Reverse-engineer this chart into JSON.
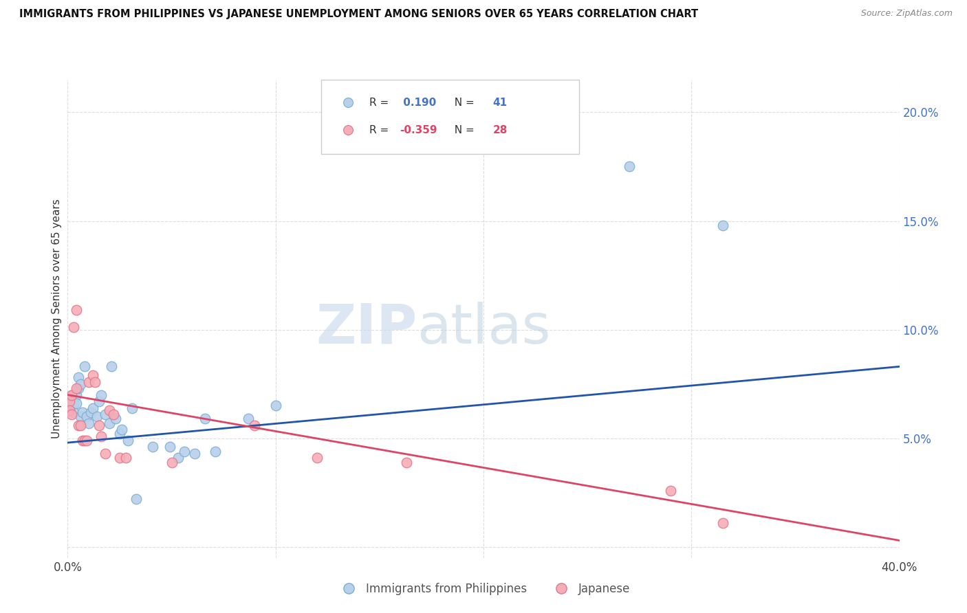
{
  "title": "IMMIGRANTS FROM PHILIPPINES VS JAPANESE UNEMPLOYMENT AMONG SENIORS OVER 65 YEARS CORRELATION CHART",
  "source": "Source: ZipAtlas.com",
  "ylabel": "Unemployment Among Seniors over 65 years",
  "yticks": [
    0.0,
    0.05,
    0.1,
    0.15,
    0.2
  ],
  "ytick_labels": [
    "",
    "5.0%",
    "10.0%",
    "15.0%",
    "20.0%"
  ],
  "xlim": [
    0.0,
    0.4
  ],
  "ylim": [
    -0.005,
    0.215
  ],
  "blue_scatter": [
    [
      0.001,
      0.067
    ],
    [
      0.001,
      0.063
    ],
    [
      0.002,
      0.07
    ],
    [
      0.002,
      0.066
    ],
    [
      0.003,
      0.066
    ],
    [
      0.003,
      0.062
    ],
    [
      0.004,
      0.07
    ],
    [
      0.004,
      0.066
    ],
    [
      0.005,
      0.078
    ],
    [
      0.005,
      0.073
    ],
    [
      0.006,
      0.075
    ],
    [
      0.006,
      0.06
    ],
    [
      0.007,
      0.062
    ],
    [
      0.008,
      0.083
    ],
    [
      0.009,
      0.06
    ],
    [
      0.01,
      0.057
    ],
    [
      0.011,
      0.062
    ],
    [
      0.012,
      0.064
    ],
    [
      0.014,
      0.06
    ],
    [
      0.015,
      0.067
    ],
    [
      0.016,
      0.07
    ],
    [
      0.018,
      0.061
    ],
    [
      0.02,
      0.057
    ],
    [
      0.021,
      0.083
    ],
    [
      0.023,
      0.059
    ],
    [
      0.025,
      0.052
    ],
    [
      0.026,
      0.054
    ],
    [
      0.029,
      0.049
    ],
    [
      0.031,
      0.064
    ],
    [
      0.033,
      0.022
    ],
    [
      0.041,
      0.046
    ],
    [
      0.049,
      0.046
    ],
    [
      0.053,
      0.041
    ],
    [
      0.056,
      0.044
    ],
    [
      0.061,
      0.043
    ],
    [
      0.066,
      0.059
    ],
    [
      0.071,
      0.044
    ],
    [
      0.087,
      0.059
    ],
    [
      0.1,
      0.065
    ],
    [
      0.27,
      0.175
    ],
    [
      0.315,
      0.148
    ]
  ],
  "pink_scatter": [
    [
      0.001,
      0.067
    ],
    [
      0.001,
      0.063
    ],
    [
      0.002,
      0.07
    ],
    [
      0.002,
      0.061
    ],
    [
      0.003,
      0.101
    ],
    [
      0.004,
      0.073
    ],
    [
      0.004,
      0.109
    ],
    [
      0.005,
      0.056
    ],
    [
      0.006,
      0.056
    ],
    [
      0.007,
      0.049
    ],
    [
      0.008,
      0.049
    ],
    [
      0.009,
      0.049
    ],
    [
      0.01,
      0.076
    ],
    [
      0.012,
      0.079
    ],
    [
      0.013,
      0.076
    ],
    [
      0.015,
      0.056
    ],
    [
      0.016,
      0.051
    ],
    [
      0.018,
      0.043
    ],
    [
      0.02,
      0.063
    ],
    [
      0.022,
      0.061
    ],
    [
      0.025,
      0.041
    ],
    [
      0.028,
      0.041
    ],
    [
      0.05,
      0.039
    ],
    [
      0.09,
      0.056
    ],
    [
      0.12,
      0.041
    ],
    [
      0.163,
      0.039
    ],
    [
      0.29,
      0.026
    ],
    [
      0.315,
      0.011
    ]
  ],
  "blue_line": [
    [
      0.0,
      0.048
    ],
    [
      0.4,
      0.083
    ]
  ],
  "pink_line": [
    [
      0.0,
      0.07
    ],
    [
      0.4,
      0.003
    ]
  ],
  "scatter_size": 110,
  "blue_color": "#b8d0ea",
  "blue_edge": "#7aafd4",
  "pink_color": "#f5adb8",
  "pink_edge": "#e0788a",
  "blue_line_color": "#2255aa",
  "pink_line_color": "#dd4466",
  "background_color": "#ffffff",
  "grid_color": "#dddddd",
  "r1_val": "0.190",
  "r1_n": "41",
  "r2_val": "-0.359",
  "r2_n": "28"
}
